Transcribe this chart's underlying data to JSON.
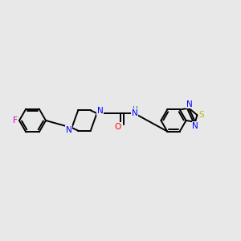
{
  "bg_color": "#e8e8e8",
  "atom_colors": {
    "F": "#cc00cc",
    "N": "#0000ff",
    "O": "#ff0000",
    "S": "#bbbb00",
    "C": "#000000",
    "H": "#006666"
  },
  "bond_color": "#000000",
  "bond_width": 1.4,
  "fig_width": 3.0,
  "fig_height": 3.0,
  "dpi": 100
}
